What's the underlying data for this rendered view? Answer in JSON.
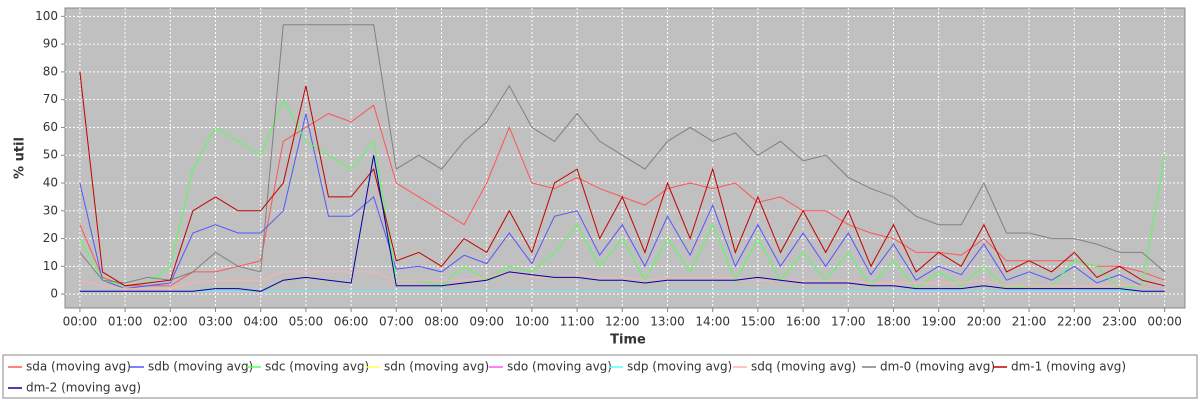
{
  "chart_data": {
    "type": "line",
    "y_label": "% util",
    "x_label": "Time",
    "xlim": [
      -0.33,
      24.45
    ],
    "ylim": [
      -5,
      103
    ],
    "yticks": [
      0,
      10,
      20,
      30,
      40,
      50,
      60,
      70,
      80,
      90,
      100
    ],
    "xticks": [
      {
        "value": 0,
        "label": "00:00"
      },
      {
        "value": 1,
        "label": "01:00"
      },
      {
        "value": 2,
        "label": "02:00"
      },
      {
        "value": 3,
        "label": "03:00"
      },
      {
        "value": 4,
        "label": "04:00"
      },
      {
        "value": 5,
        "label": "05:00"
      },
      {
        "value": 6,
        "label": "06:00"
      },
      {
        "value": 7,
        "label": "07:00"
      },
      {
        "value": 8,
        "label": "08:00"
      },
      {
        "value": 9,
        "label": "09:00"
      },
      {
        "value": 10,
        "label": "10:00"
      },
      {
        "value": 11,
        "label": "11:00"
      },
      {
        "value": 12,
        "label": "12:00"
      },
      {
        "value": 13,
        "label": "13:00"
      },
      {
        "value": 14,
        "label": "14:00"
      },
      {
        "value": 15,
        "label": "15:00"
      },
      {
        "value": 16,
        "label": "16:00"
      },
      {
        "value": 17,
        "label": "17:00"
      },
      {
        "value": 18,
        "label": "18:00"
      },
      {
        "value": 19,
        "label": "19:00"
      },
      {
        "value": 20,
        "label": "20:00"
      },
      {
        "value": 21,
        "label": "21:00"
      },
      {
        "value": 22,
        "label": "22:00"
      },
      {
        "value": 23,
        "label": "23:00"
      },
      {
        "value": 24,
        "label": "00:00"
      }
    ],
    "grid": true,
    "x": [
      0,
      0.5,
      1,
      1.5,
      2,
      2.5,
      3,
      3.5,
      4,
      4.5,
      5,
      5.5,
      6,
      6.5,
      7,
      7.5,
      8,
      8.5,
      9,
      9.5,
      10,
      10.5,
      11,
      11.5,
      12,
      12.5,
      13,
      13.5,
      14,
      14.5,
      15,
      15.5,
      16,
      16.5,
      17,
      17.5,
      18,
      18.5,
      19,
      19.5,
      20,
      20.5,
      21,
      21.5,
      22,
      22.5,
      23,
      23.5,
      24
    ],
    "series": [
      {
        "name": "sda (moving avg)",
        "color": "#ff5555",
        "values": [
          25,
          6,
          3,
          3,
          3,
          8,
          8,
          10,
          12,
          55,
          60,
          65,
          62,
          68,
          40,
          35,
          30,
          25,
          40,
          60,
          40,
          38,
          42,
          38,
          35,
          32,
          38,
          40,
          38,
          40,
          33,
          35,
          30,
          30,
          25,
          22,
          20,
          15,
          15,
          14,
          20,
          12,
          12,
          12,
          12,
          10,
          10,
          8,
          5
        ]
      },
      {
        "name": "sdb (moving avg)",
        "color": "#5555ff",
        "values": [
          40,
          5,
          2,
          3,
          4,
          22,
          25,
          22,
          22,
          30,
          65,
          28,
          28,
          35,
          9,
          10,
          8,
          14,
          11,
          22,
          11,
          28,
          30,
          14,
          25,
          10,
          28,
          14,
          32,
          10,
          25,
          10,
          22,
          10,
          22,
          7,
          18,
          5,
          10,
          7,
          18,
          5,
          8,
          5,
          10,
          4,
          7,
          3,
          2
        ]
      },
      {
        "name": "sdc (moving avg)",
        "color": "#55ff55",
        "values": [
          20,
          5,
          3,
          4,
          10,
          45,
          60,
          55,
          50,
          70,
          55,
          50,
          45,
          55,
          5,
          5,
          3,
          10,
          5,
          10,
          8,
          15,
          25,
          10,
          20,
          5,
          20,
          8,
          25,
          5,
          20,
          5,
          15,
          5,
          15,
          3,
          12,
          2,
          8,
          3,
          10,
          2,
          3,
          3,
          12,
          10,
          2,
          3,
          50
        ]
      },
      {
        "name": "sdn (moving avg)",
        "color": "#ffff55",
        "values": [
          1,
          1,
          1,
          1,
          1,
          1,
          1,
          1,
          1,
          1,
          1,
          1,
          1,
          1,
          1,
          1,
          1,
          1,
          1,
          1,
          1,
          1,
          1,
          1,
          1,
          1,
          1,
          1,
          1,
          1,
          1,
          1,
          1,
          1,
          1,
          1,
          1,
          1,
          1,
          1,
          1,
          1,
          1,
          1,
          1,
          1,
          1,
          1,
          1
        ]
      },
      {
        "name": "sdo (moving avg)",
        "color": "#ff55ff",
        "values": [
          1,
          1,
          1,
          1,
          1,
          1,
          1,
          1,
          1,
          1,
          1,
          1,
          1,
          1,
          1,
          1,
          1,
          1,
          1,
          1,
          1,
          1,
          1,
          1,
          1,
          1,
          1,
          1,
          1,
          1,
          1,
          1,
          1,
          1,
          1,
          1,
          1,
          1,
          1,
          1,
          1,
          1,
          1,
          1,
          1,
          1,
          1,
          1,
          1
        ]
      },
      {
        "name": "sdp (moving avg)",
        "color": "#55ffff",
        "values": [
          1,
          1,
          1,
          1,
          1,
          1,
          1,
          1,
          1,
          1,
          1,
          1,
          1,
          1,
          1,
          1,
          1,
          1,
          1,
          1,
          1,
          1,
          1,
          1,
          1,
          1,
          1,
          1,
          1,
          1,
          1,
          1,
          1,
          1,
          1,
          1,
          1,
          1,
          1,
          1,
          1,
          1,
          1,
          1,
          1,
          1,
          1,
          1,
          1
        ]
      },
      {
        "name": "sdq (moving avg)",
        "color": "#ffafaf",
        "values": [
          5,
          3,
          2,
          2,
          2,
          4,
          5,
          5,
          5,
          8,
          8,
          8,
          8,
          8,
          5,
          5,
          5,
          5,
          6,
          8,
          6,
          6,
          7,
          6,
          6,
          5,
          6,
          6,
          6,
          6,
          5,
          5,
          5,
          5,
          5,
          4,
          4,
          4,
          4,
          4,
          5,
          3,
          3,
          3,
          3,
          3,
          3,
          3,
          2
        ]
      },
      {
        "name": "dm-0 (moving avg)",
        "color": "#808080",
        "values": [
          15,
          5,
          4,
          6,
          5,
          8,
          15,
          10,
          8,
          97,
          97,
          97,
          97,
          97,
          45,
          50,
          45,
          55,
          62,
          75,
          60,
          55,
          65,
          55,
          50,
          45,
          55,
          60,
          55,
          58,
          50,
          55,
          48,
          50,
          42,
          38,
          35,
          28,
          25,
          25,
          40,
          22,
          22,
          20,
          20,
          18,
          15,
          15,
          8
        ]
      },
      {
        "name": "dm-1 (moving avg)",
        "color": "#c00000",
        "values": [
          80,
          8,
          3,
          4,
          5,
          30,
          35,
          30,
          30,
          40,
          75,
          35,
          35,
          45,
          12,
          15,
          10,
          20,
          15,
          30,
          15,
          40,
          45,
          20,
          35,
          15,
          40,
          20,
          45,
          15,
          35,
          15,
          30,
          15,
          30,
          10,
          25,
          8,
          15,
          10,
          25,
          8,
          12,
          8,
          15,
          6,
          10,
          5,
          3
        ]
      },
      {
        "name": "dm-2 (moving avg)",
        "color": "#0000a0",
        "values": [
          1,
          1,
          1,
          1,
          1,
          1,
          2,
          2,
          1,
          5,
          6,
          5,
          4,
          50,
          3,
          3,
          3,
          4,
          5,
          8,
          7,
          6,
          6,
          5,
          5,
          4,
          5,
          5,
          5,
          5,
          6,
          5,
          4,
          4,
          4,
          3,
          3,
          2,
          2,
          2,
          3,
          2,
          2,
          2,
          2,
          2,
          2,
          1,
          1
        ]
      }
    ]
  }
}
